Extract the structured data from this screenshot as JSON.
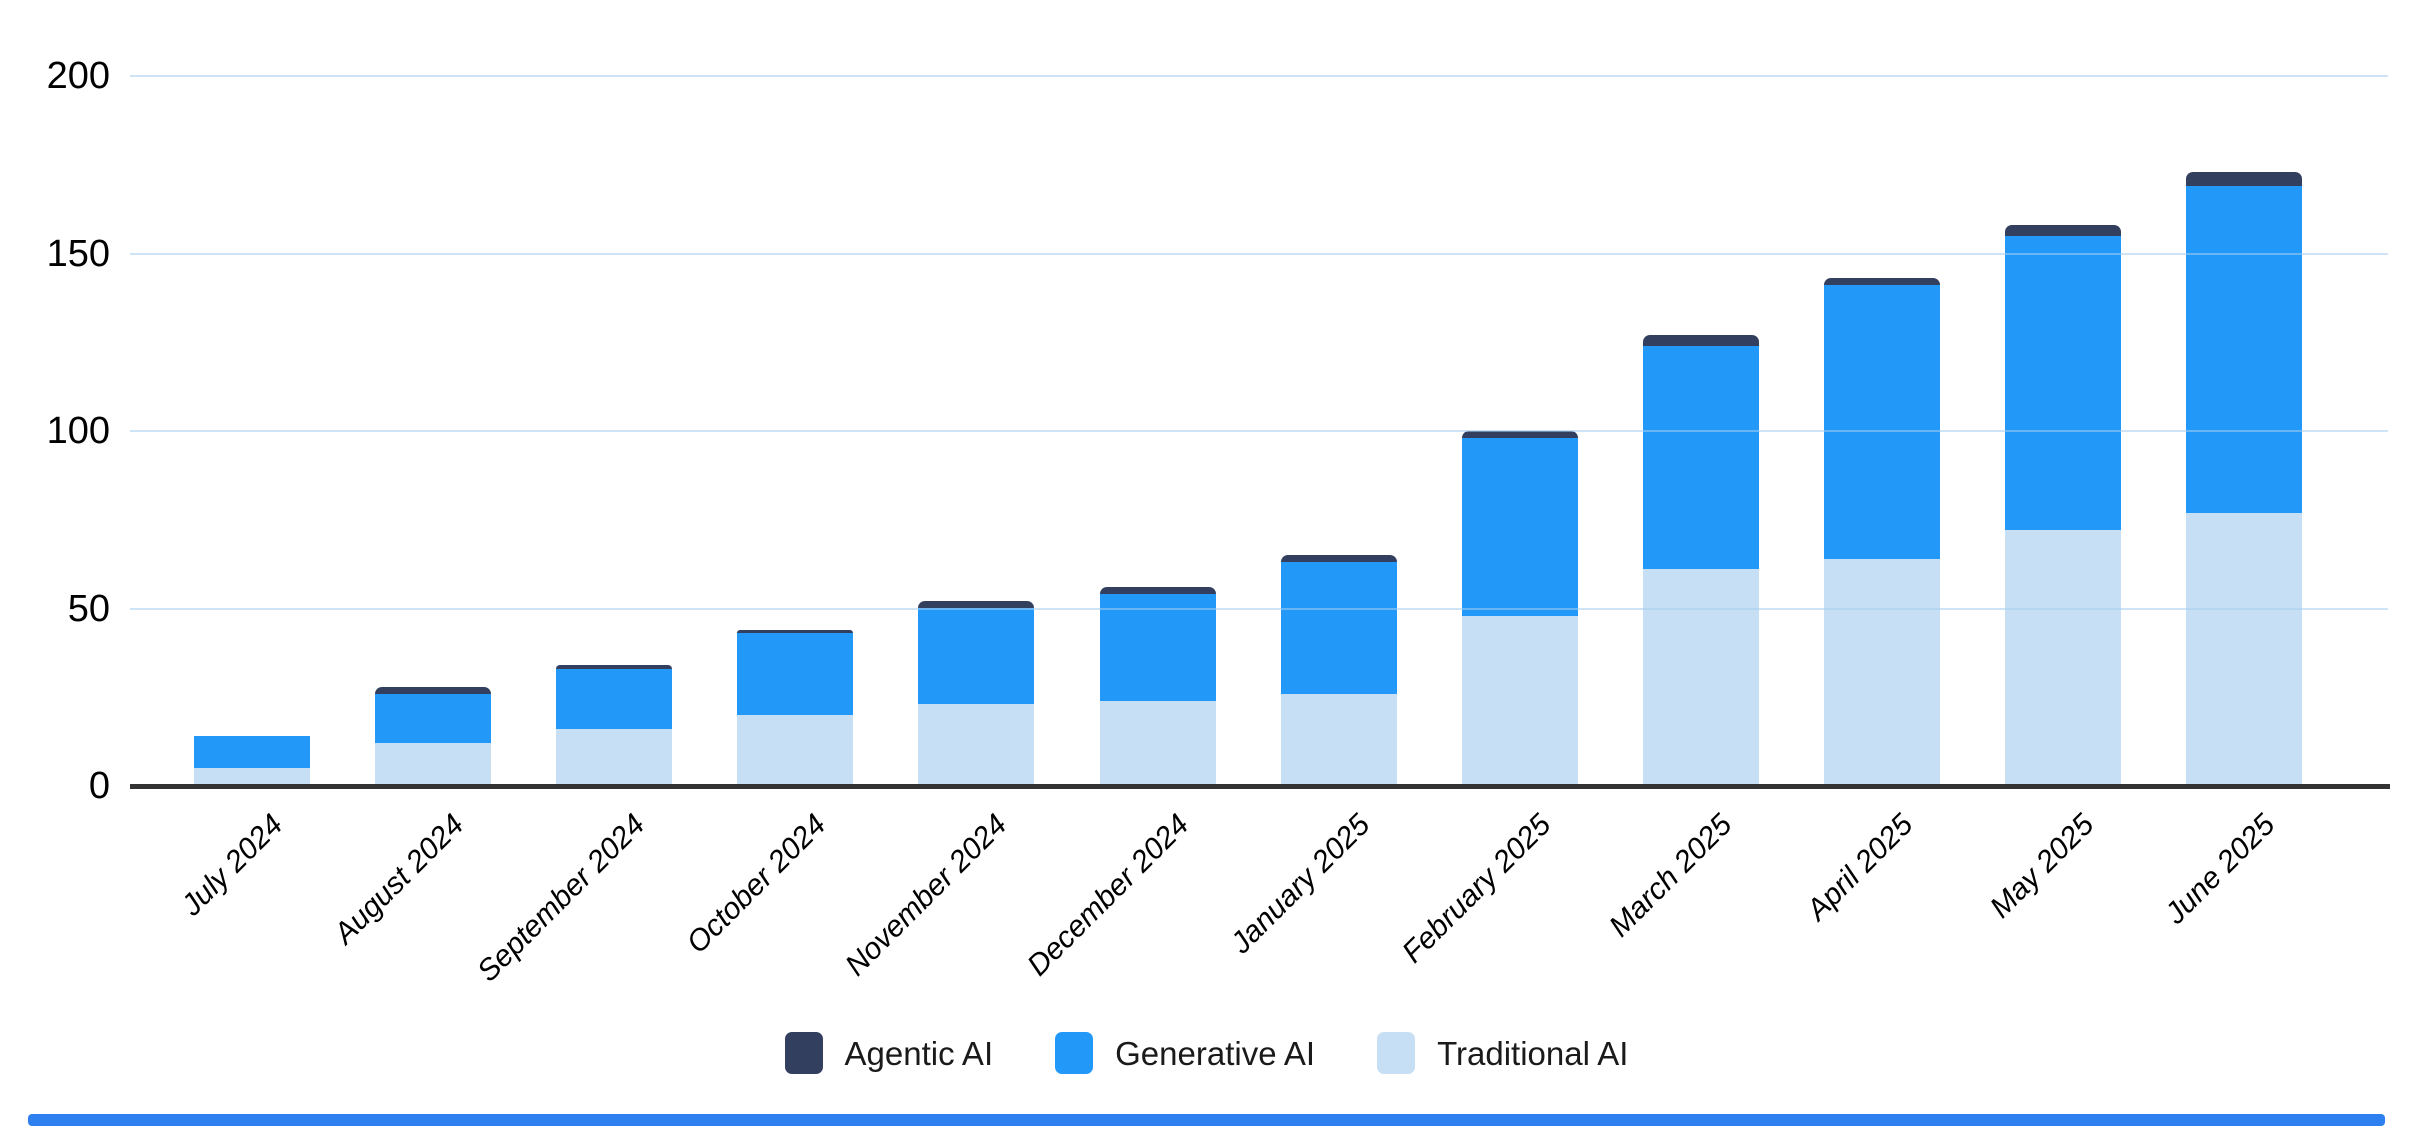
{
  "chart_data": {
    "type": "bar",
    "stacked": true,
    "title": "",
    "xlabel": "",
    "ylabel": "",
    "categories": [
      "July 2024",
      "August 2024",
      "September 2024",
      "October 2024",
      "November 2024",
      "December 2024",
      "January 2025",
      "February 2025",
      "March 2025",
      "April 2025",
      "May 2025",
      "June 2025"
    ],
    "series": [
      {
        "name": "Agentic AI",
        "color": "#323F5F",
        "values": [
          0,
          2,
          1,
          1,
          2,
          2,
          2,
          2,
          3,
          2,
          3,
          4
        ]
      },
      {
        "name": "Generative AI",
        "color": "#2299F8",
        "values": [
          9,
          14,
          17,
          23,
          27,
          30,
          37,
          50,
          63,
          77,
          83,
          92
        ]
      },
      {
        "name": "Traditional AI",
        "color": "#C7DFF4",
        "values": [
          5,
          12,
          16,
          20,
          23,
          24,
          26,
          48,
          61,
          64,
          72,
          77
        ]
      }
    ],
    "stack_order_bottom_to_top": [
      "Traditional AI",
      "Generative AI",
      "Agentic AI"
    ],
    "totals": [
      14,
      28,
      34,
      44,
      52,
      56,
      65,
      100,
      127,
      143,
      158,
      173
    ],
    "y_ticks": [
      0,
      50,
      100,
      150,
      200
    ],
    "ylim": [
      0,
      200
    ],
    "grid": true,
    "gridline_color": "#D9E9F6",
    "axis_line_color": "#333333",
    "legend_position": "bottom",
    "category_label_rotation_deg": -45,
    "category_label_style": "italic"
  },
  "legend": {
    "items": [
      "Agentic AI",
      "Generative AI",
      "Traditional AI"
    ]
  },
  "footer_bar": {
    "color": "#2E80F0"
  }
}
